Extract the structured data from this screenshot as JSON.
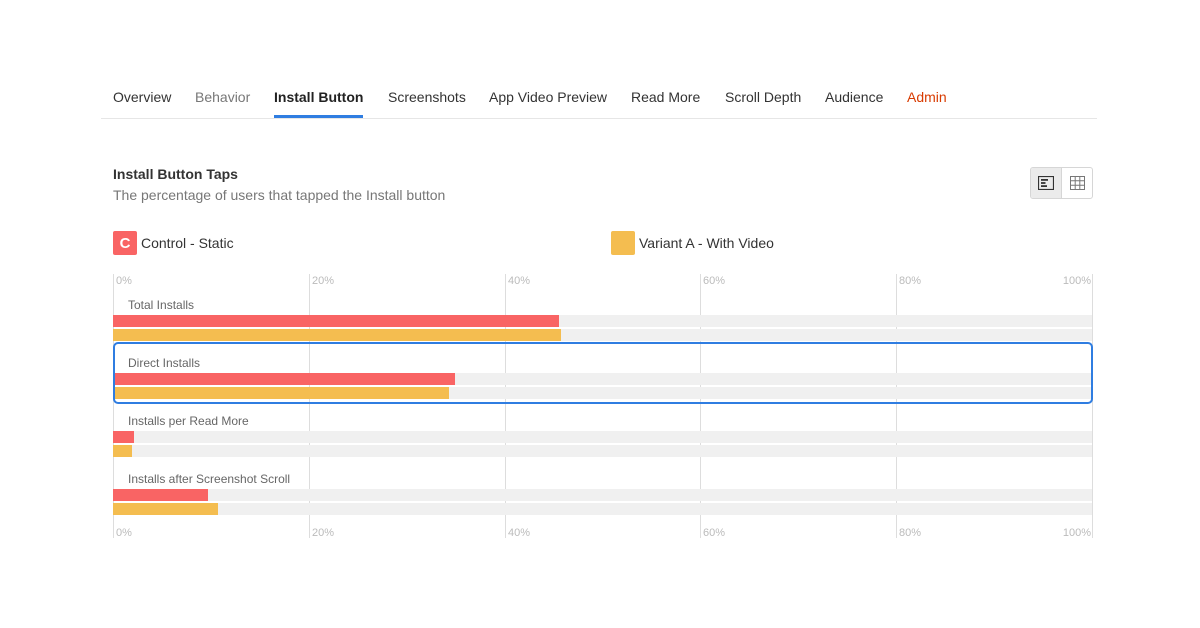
{
  "tabs": [
    {
      "label": "Overview",
      "state": "normal"
    },
    {
      "label": "Behavior",
      "state": "muted"
    },
    {
      "label": "Install Button",
      "state": "active"
    },
    {
      "label": "Screenshots",
      "state": "normal"
    },
    {
      "label": "App Video Preview",
      "state": "normal"
    },
    {
      "label": "Read More",
      "state": "normal"
    },
    {
      "label": "Scroll Depth",
      "state": "normal"
    },
    {
      "label": "Audience",
      "state": "normal"
    },
    {
      "label": "Admin",
      "state": "admin"
    }
  ],
  "header": {
    "title": "Install Button Taps",
    "subtitle": "The percentage of users that tapped the Install button"
  },
  "view_toggle": {
    "options": [
      "bar-chart-icon",
      "table-grid-icon"
    ],
    "selected": "bar-chart-icon"
  },
  "legend": [
    {
      "label": "Control - Static",
      "color": "#f96464",
      "glyph": "C"
    },
    {
      "label": "Variant A - With Video",
      "color": "#f4bd50",
      "glyph": ""
    }
  ],
  "chart_data": {
    "type": "bar",
    "orientation": "horizontal",
    "categories": [
      "Total Installs",
      "Direct Installs",
      "Installs per Read More",
      "Installs after Screenshot Scroll"
    ],
    "series": [
      {
        "name": "Control - Static",
        "color": "#f96464",
        "values": [
          45.6,
          34.9,
          2.1,
          9.7
        ]
      },
      {
        "name": "Variant A - With Video",
        "color": "#f4bd50",
        "values": [
          45.8,
          34.3,
          1.9,
          10.7
        ]
      }
    ],
    "xlim": [
      0,
      100
    ],
    "ticks": [
      "0%",
      "20%",
      "40%",
      "60%",
      "80%",
      "100%"
    ],
    "highlighted_category": "Direct Installs",
    "grid": true
  }
}
